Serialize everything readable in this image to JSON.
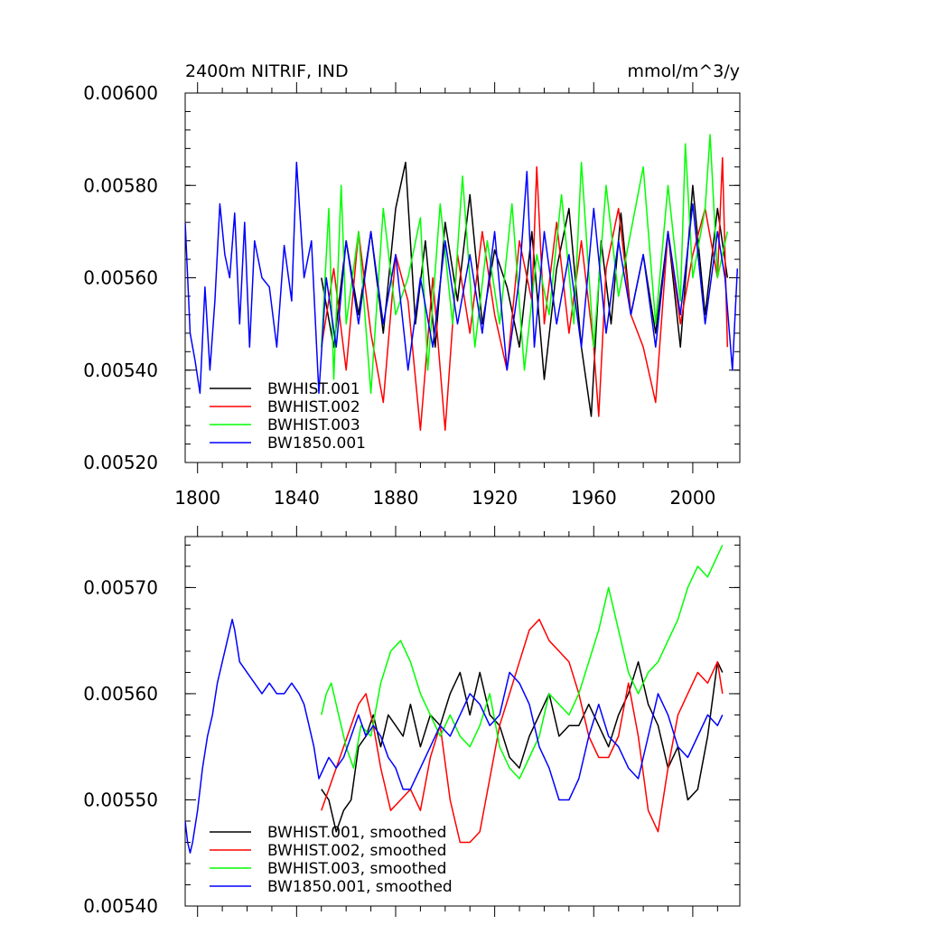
{
  "chart_data": [
    {
      "type": "line",
      "title_left": "2400m NITRIF, IND",
      "title_right": "mmol/m^3/y",
      "xlim": [
        1795,
        2019
      ],
      "ylim": [
        0.0052,
        0.006
      ],
      "x_ticks": [
        1800,
        1840,
        1880,
        1920,
        1960,
        2000
      ],
      "x_tick_labels": [
        "1800",
        "1840",
        "1880",
        "1920",
        "1960",
        "2000"
      ],
      "y_ticks": [
        0.0052,
        0.0054,
        0.0056,
        0.0058,
        0.006
      ],
      "y_tick_labels": [
        "0.00520",
        "0.00540",
        "0.00560",
        "0.00580",
        "0.00600"
      ],
      "legend_position": "bottom-left",
      "series": [
        {
          "name": "BWHIST.001",
          "color": "#000000",
          "x": [
            1850,
            1855,
            1860,
            1865,
            1870,
            1875,
            1880,
            1884,
            1888,
            1892,
            1896,
            1900,
            1905,
            1910,
            1915,
            1920,
            1925,
            1930,
            1935,
            1940,
            1945,
            1950,
            1955,
            1959,
            1963,
            1967,
            1971,
            1975,
            1980,
            1985,
            1990,
            1995,
            2000,
            2005,
            2010,
            2014
          ],
          "y": [
            0.0056,
            0.00545,
            0.00568,
            0.00552,
            0.0057,
            0.00548,
            0.00575,
            0.00585,
            0.0055,
            0.00568,
            0.00545,
            0.00572,
            0.00555,
            0.00578,
            0.0055,
            0.00566,
            0.00558,
            0.00545,
            0.0057,
            0.00538,
            0.00562,
            0.00575,
            0.00545,
            0.0053,
            0.00568,
            0.0055,
            0.00574,
            0.00552,
            0.00565,
            0.00548,
            0.0057,
            0.00545,
            0.0058,
            0.00552,
            0.00575,
            0.0056
          ]
        },
        {
          "name": "BWHIST.002",
          "color": "#ff0000",
          "x": [
            1850,
            1855,
            1860,
            1865,
            1870,
            1875,
            1880,
            1885,
            1890,
            1895,
            1900,
            1905,
            1910,
            1915,
            1920,
            1925,
            1930,
            1935,
            1937,
            1940,
            1945,
            1950,
            1955,
            1960,
            1962,
            1965,
            1970,
            1975,
            1980,
            1985,
            1990,
            1995,
            2000,
            2005,
            2010,
            2012,
            2014
          ],
          "y": [
            0.00545,
            0.00562,
            0.0054,
            0.0057,
            0.00548,
            0.00533,
            0.00565,
            0.00555,
            0.00527,
            0.0056,
            0.00527,
            0.00565,
            0.00548,
            0.0057,
            0.00552,
            0.0054,
            0.00568,
            0.00555,
            0.00584,
            0.0055,
            0.00572,
            0.00548,
            0.00568,
            0.00545,
            0.0053,
            0.00562,
            0.00575,
            0.00552,
            0.00545,
            0.00533,
            0.0057,
            0.0055,
            0.00565,
            0.00575,
            0.0056,
            0.00586,
            0.00545
          ]
        },
        {
          "name": "BWHIST.003",
          "color": "#00ff00",
          "x": [
            1850,
            1853,
            1855,
            1858,
            1860,
            1865,
            1870,
            1875,
            1880,
            1885,
            1890,
            1893,
            1898,
            1903,
            1907,
            1912,
            1917,
            1922,
            1927,
            1932,
            1937,
            1942,
            1947,
            1952,
            1955,
            1960,
            1965,
            1970,
            1975,
            1980,
            1985,
            1990,
            1995,
            1997,
            2000,
            2005,
            2007,
            2010,
            2014
          ],
          "y": [
            0.00545,
            0.00575,
            0.00538,
            0.0058,
            0.0055,
            0.0057,
            0.00535,
            0.00575,
            0.00552,
            0.0056,
            0.00573,
            0.0054,
            0.00576,
            0.0055,
            0.00582,
            0.00545,
            0.00568,
            0.0055,
            0.00576,
            0.0054,
            0.00565,
            0.00552,
            0.00578,
            0.0055,
            0.00585,
            0.00545,
            0.0058,
            0.00556,
            0.0057,
            0.00584,
            0.0055,
            0.0058,
            0.00555,
            0.00589,
            0.0056,
            0.00575,
            0.00591,
            0.0056,
            0.0057
          ]
        },
        {
          "name": "BW1850.001",
          "color": "#0000ff",
          "x": [
            1795,
            1797,
            1799,
            1801,
            1803,
            1805,
            1807,
            1809,
            1811,
            1813,
            1815,
            1817,
            1819,
            1821,
            1823,
            1826,
            1829,
            1832,
            1835,
            1838,
            1840,
            1843,
            1846,
            1849,
            1852,
            1856,
            1860,
            1865,
            1870,
            1875,
            1880,
            1885,
            1890,
            1895,
            1900,
            1905,
            1910,
            1915,
            1920,
            1925,
            1930,
            1933,
            1936,
            1940,
            1945,
            1950,
            1955,
            1960,
            1965,
            1970,
            1975,
            1980,
            1985,
            1990,
            1995,
            2000,
            2005,
            2010,
            2013,
            2016,
            2018
          ],
          "y": [
            0.00572,
            0.00548,
            0.00542,
            0.00535,
            0.00558,
            0.0054,
            0.00555,
            0.00576,
            0.00565,
            0.0056,
            0.00574,
            0.0055,
            0.00572,
            0.00545,
            0.00568,
            0.0056,
            0.00558,
            0.00545,
            0.00567,
            0.00555,
            0.00585,
            0.0056,
            0.00568,
            0.00535,
            0.0056,
            0.00545,
            0.00568,
            0.0055,
            0.0057,
            0.0055,
            0.00565,
            0.0054,
            0.0056,
            0.00545,
            0.00568,
            0.0055,
            0.00565,
            0.00548,
            0.0057,
            0.0054,
            0.0056,
            0.00583,
            0.00545,
            0.0057,
            0.0055,
            0.00565,
            0.00545,
            0.00575,
            0.00548,
            0.00568,
            0.00552,
            0.00565,
            0.00545,
            0.0057,
            0.00552,
            0.00576,
            0.0055,
            0.0057,
            0.0056,
            0.0054,
            0.00562
          ]
        }
      ]
    },
    {
      "type": "line",
      "xlim": [
        1795,
        2019
      ],
      "ylim": [
        0.0054,
        0.005748
      ],
      "x_ticks": [
        1800,
        1840,
        1880,
        1920,
        1960,
        2000
      ],
      "y_ticks": [
        0.0054,
        0.0055,
        0.0056,
        0.0057
      ],
      "y_tick_labels": [
        "0.00540",
        "0.00550",
        "0.00560",
        "0.00570"
      ],
      "legend_position": "bottom-left",
      "series": [
        {
          "name": "BWHIST.001, smoothed",
          "color": "#000000",
          "x": [
            1850,
            1853,
            1856,
            1859,
            1862,
            1865,
            1868,
            1871,
            1874,
            1877,
            1880,
            1883,
            1886,
            1890,
            1894,
            1898,
            1902,
            1906,
            1910,
            1914,
            1918,
            1922,
            1926,
            1930,
            1934,
            1938,
            1942,
            1946,
            1950,
            1954,
            1958,
            1962,
            1966,
            1970,
            1974,
            1978,
            1982,
            1986,
            1990,
            1994,
            1998,
            2002,
            2006,
            2010,
            2012
          ],
          "y": [
            0.00551,
            0.0055,
            0.00547,
            0.00549,
            0.0055,
            0.00555,
            0.00556,
            0.00558,
            0.00555,
            0.00558,
            0.00557,
            0.00556,
            0.00559,
            0.00555,
            0.00558,
            0.00557,
            0.0056,
            0.00562,
            0.00558,
            0.00562,
            0.00558,
            0.00557,
            0.00554,
            0.00553,
            0.00556,
            0.00558,
            0.0056,
            0.00556,
            0.00557,
            0.00557,
            0.00559,
            0.00557,
            0.00555,
            0.00558,
            0.0056,
            0.00563,
            0.00559,
            0.00557,
            0.00553,
            0.00555,
            0.0055,
            0.00551,
            0.00556,
            0.00563,
            0.00562
          ]
        },
        {
          "name": "BWHIST.002, smoothed",
          "color": "#ff0000",
          "x": [
            1850,
            1853,
            1856,
            1859,
            1862,
            1865,
            1868,
            1871,
            1874,
            1878,
            1882,
            1886,
            1890,
            1894,
            1898,
            1902,
            1906,
            1910,
            1914,
            1918,
            1922,
            1926,
            1930,
            1934,
            1938,
            1942,
            1946,
            1950,
            1954,
            1958,
            1962,
            1966,
            1970,
            1974,
            1978,
            1982,
            1986,
            1990,
            1994,
            1998,
            2002,
            2006,
            2010,
            2012
          ],
          "y": [
            0.00549,
            0.00551,
            0.00553,
            0.00555,
            0.00557,
            0.00559,
            0.0056,
            0.00557,
            0.00553,
            0.00549,
            0.0055,
            0.00551,
            0.00549,
            0.00554,
            0.00557,
            0.0055,
            0.00546,
            0.00546,
            0.00547,
            0.00552,
            0.00557,
            0.0056,
            0.00563,
            0.00566,
            0.00567,
            0.00565,
            0.00564,
            0.00563,
            0.0056,
            0.00556,
            0.00554,
            0.00554,
            0.00556,
            0.00561,
            0.00556,
            0.00549,
            0.00547,
            0.00553,
            0.00558,
            0.0056,
            0.00562,
            0.00561,
            0.00563,
            0.0056
          ]
        },
        {
          "name": "BWHIST.003, smoothed",
          "color": "#00ff00",
          "x": [
            1850,
            1852,
            1854,
            1857,
            1860,
            1863,
            1866,
            1870,
            1874,
            1878,
            1882,
            1886,
            1890,
            1894,
            1898,
            1902,
            1906,
            1910,
            1914,
            1918,
            1922,
            1926,
            1930,
            1934,
            1938,
            1942,
            1946,
            1950,
            1954,
            1958,
            1962,
            1966,
            1970,
            1974,
            1978,
            1982,
            1986,
            1990,
            1994,
            1998,
            2002,
            2006,
            2010,
            2012
          ],
          "y": [
            0.00558,
            0.0056,
            0.00561,
            0.00558,
            0.00555,
            0.00553,
            0.00557,
            0.00556,
            0.00561,
            0.00564,
            0.00565,
            0.00563,
            0.0056,
            0.00558,
            0.00556,
            0.00558,
            0.00556,
            0.00555,
            0.00557,
            0.0056,
            0.00555,
            0.00553,
            0.00552,
            0.00554,
            0.00556,
            0.0056,
            0.00559,
            0.00558,
            0.0056,
            0.00563,
            0.00566,
            0.0057,
            0.00566,
            0.00562,
            0.0056,
            0.00562,
            0.00563,
            0.00565,
            0.00567,
            0.0057,
            0.00572,
            0.00571,
            0.00573,
            0.00574
          ]
        },
        {
          "name": "BW1850.001, smoothed",
          "color": "#0000ff",
          "x": [
            1795,
            1796,
            1797,
            1798,
            1800,
            1802,
            1804,
            1806,
            1808,
            1810,
            1812,
            1814,
            1815,
            1817,
            1820,
            1823,
            1826,
            1829,
            1832,
            1835,
            1838,
            1841,
            1843,
            1845,
            1847,
            1849,
            1851,
            1853,
            1856,
            1859,
            1862,
            1865,
            1868,
            1871,
            1874,
            1877,
            1880,
            1883,
            1886,
            1890,
            1894,
            1898,
            1902,
            1906,
            1910,
            1914,
            1918,
            1922,
            1926,
            1930,
            1934,
            1938,
            1942,
            1946,
            1950,
            1954,
            1958,
            1962,
            1966,
            1970,
            1974,
            1978,
            1982,
            1986,
            1990,
            1994,
            1998,
            2002,
            2006,
            2010,
            2012
          ],
          "y": [
            0.00548,
            0.00546,
            0.00545,
            0.00546,
            0.00549,
            0.00553,
            0.00556,
            0.00558,
            0.00561,
            0.00563,
            0.00565,
            0.00567,
            0.00566,
            0.00563,
            0.00562,
            0.00561,
            0.0056,
            0.00561,
            0.0056,
            0.0056,
            0.00561,
            0.0056,
            0.00559,
            0.00557,
            0.00555,
            0.00552,
            0.00553,
            0.00554,
            0.00553,
            0.00554,
            0.00556,
            0.00558,
            0.00556,
            0.00557,
            0.00556,
            0.00554,
            0.00553,
            0.00551,
            0.00551,
            0.00553,
            0.00555,
            0.00557,
            0.00556,
            0.00558,
            0.0056,
            0.00559,
            0.00557,
            0.00558,
            0.00562,
            0.00561,
            0.00559,
            0.00555,
            0.00553,
            0.0055,
            0.0055,
            0.00552,
            0.00556,
            0.00559,
            0.00556,
            0.00555,
            0.00553,
            0.00552,
            0.00556,
            0.0056,
            0.00558,
            0.00555,
            0.00554,
            0.00556,
            0.00558,
            0.00557,
            0.00558
          ]
        }
      ]
    }
  ]
}
